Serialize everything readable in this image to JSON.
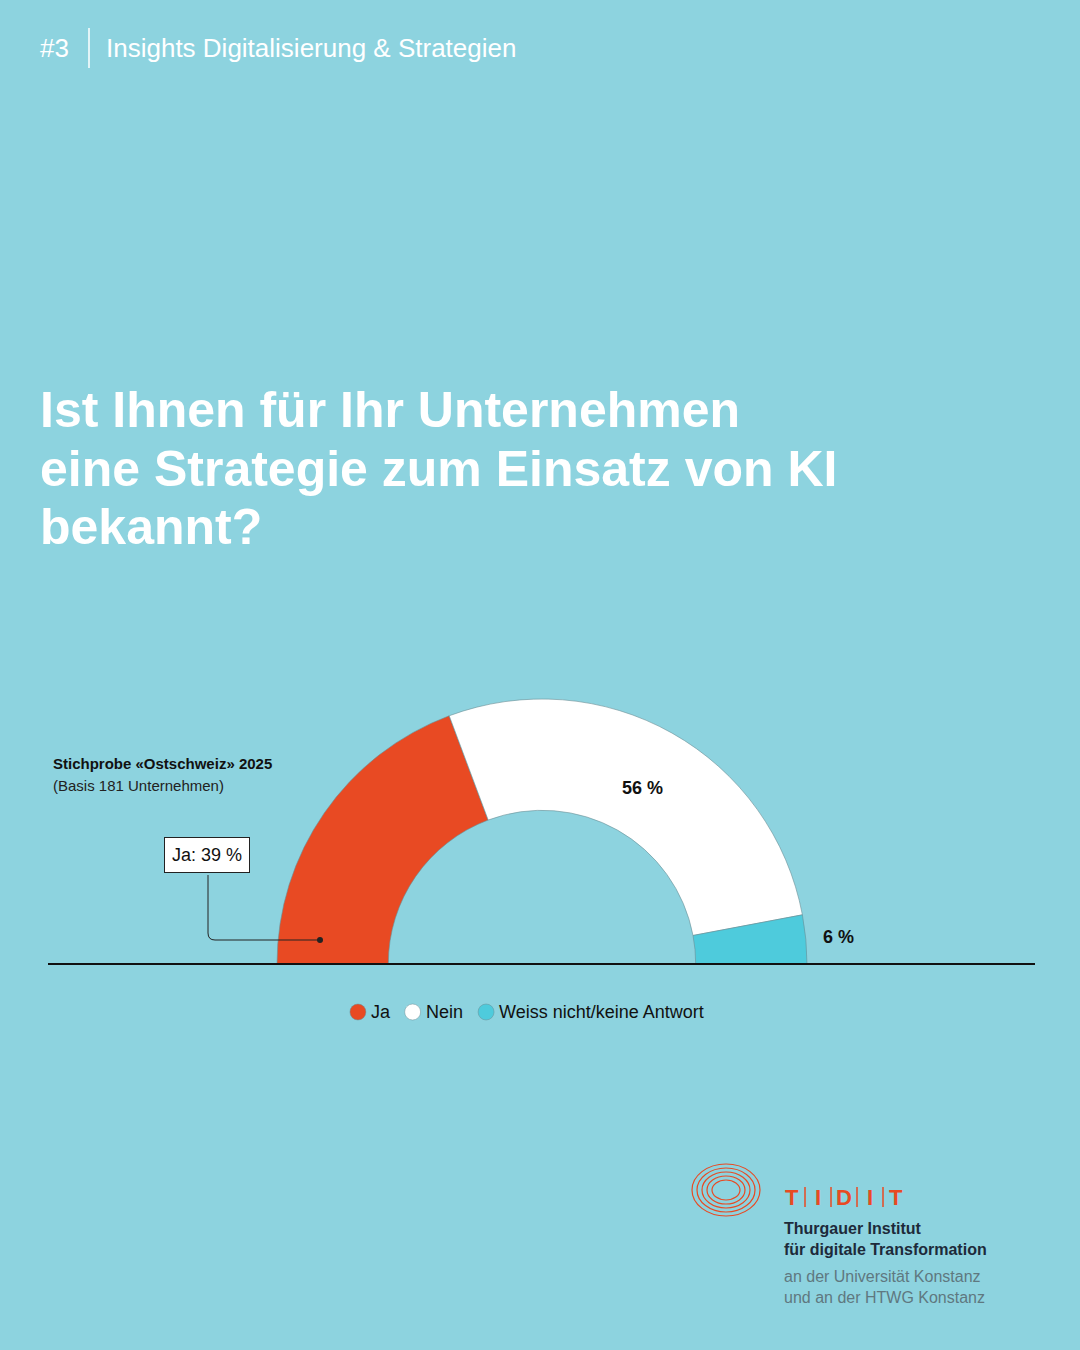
{
  "header": {
    "number": "#3",
    "series": "Insights Digitalisierung & Strategien"
  },
  "chart_data": {
    "type": "donut",
    "title": "Ist Ihnen für Ihr Unternehmen eine Strategie zum Einsatz von KI bekannt?",
    "subtitle": "Stichprobe «Ostschweiz» 2025",
    "note": "(Basis 181 Unternehmen)",
    "categories": [
      "Ja",
      "Nein",
      "Weiss nicht/keine Antwort"
    ],
    "values": [
      39,
      56,
      6
    ],
    "value_labels": [
      "Ja: 39 %",
      "56 %",
      "6 %"
    ],
    "colors": [
      "#e84a23",
      "#ffffff",
      "#4ecbdc"
    ],
    "data_labels": true,
    "legend": "bottom"
  },
  "logo": {
    "acronym": "TIDIT",
    "name_lines": [
      "Thurgauer Institut",
      "für digitale Transformation"
    ],
    "affiliation_lines": [
      "an der Universität Konstanz",
      "und an der HTWG Konstanz"
    ]
  }
}
